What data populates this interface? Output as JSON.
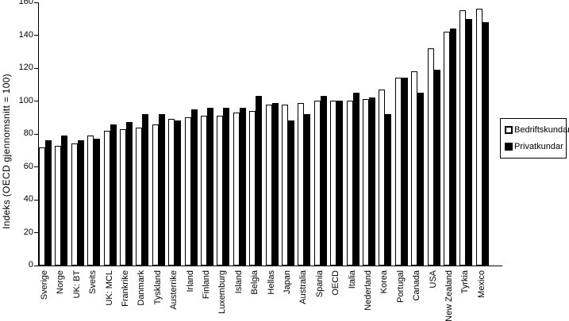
{
  "colors": {
    "background": "#ffffff",
    "axis": "#000000",
    "series_open_fill": "#ffffff",
    "series_open_border": "#000000",
    "series_solid_fill": "#000000"
  },
  "legend": {
    "items": [
      {
        "label": "Bedriftskundar",
        "swatch": "white-square"
      },
      {
        "label": "Privatkundar",
        "swatch": "black-square"
      }
    ]
  },
  "chart_data": {
    "type": "bar",
    "title": "",
    "xlabel": "",
    "ylabel": "Indeks (OECD gjennomsnitt = 100)",
    "ylim": [
      0,
      160
    ],
    "yticks": [
      0,
      20,
      40,
      60,
      80,
      100,
      120,
      140,
      160
    ],
    "grid": false,
    "legend_position": "right",
    "categories": [
      "Sverige",
      "Norge",
      "UK: BT",
      "Sveits",
      "UK: MCL",
      "Frankrike",
      "Danmark",
      "Tyskland",
      "Austerrike",
      "Irland",
      "Finland",
      "Luxemburg",
      "Island",
      "Belgia",
      "Hellas",
      "Japan",
      "Australia",
      "Spania",
      "OECD",
      "Italia",
      "Nederland",
      "Korea",
      "Portugal",
      "Canada",
      "USA",
      "New Zealand",
      "Tyrkia",
      "Mexico"
    ],
    "series": [
      {
        "name": "Bedriftskundar",
        "style": "open",
        "color": "#ffffff",
        "values": [
          72,
          73,
          74,
          79,
          82,
          83,
          84,
          86,
          89,
          90,
          91,
          91,
          93,
          94,
          98,
          98,
          99,
          100,
          100,
          100,
          101,
          107,
          114,
          118,
          132,
          142,
          155,
          156
        ]
      },
      {
        "name": "Privatkundar",
        "style": "solid",
        "color": "#000000",
        "values": [
          76,
          79,
          76,
          77,
          86,
          87,
          92,
          92,
          88,
          95,
          96,
          96,
          96,
          103,
          99,
          88,
          92,
          103,
          100,
          105,
          102,
          92,
          114,
          105,
          119,
          144,
          150,
          148
        ]
      }
    ]
  }
}
